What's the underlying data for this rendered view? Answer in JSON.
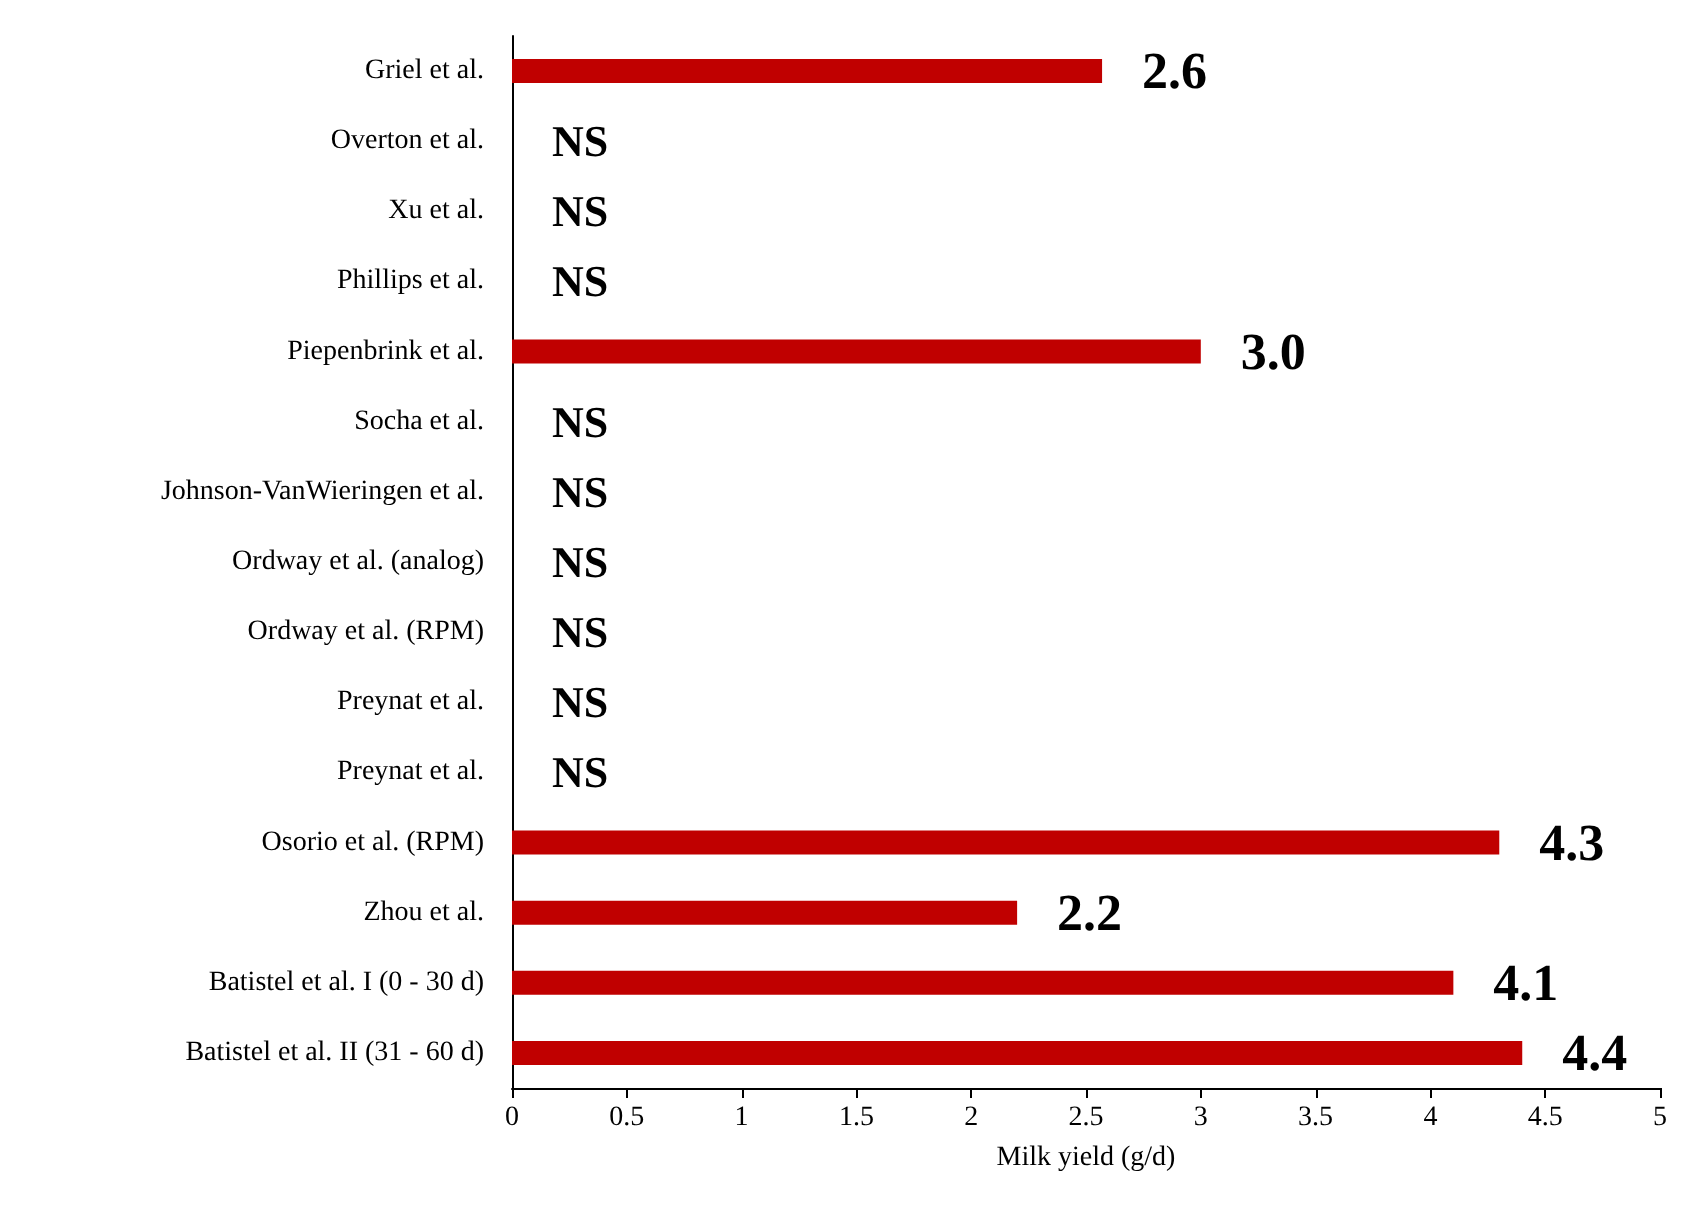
{
  "chart_data": {
    "type": "bar",
    "orientation": "horizontal",
    "xlabel": "Milk yield (g/d)",
    "categories": [
      "Griel et al.",
      "Overton et al.",
      "Xu et al.",
      "Phillips et al.",
      "Piepenbrink et al.",
      "Socha et al.",
      "Johnson-VanWieringen et al.",
      "Ordway et al. (analog)",
      "Ordway et al. (RPM)",
      "Preynat et al.",
      "Preynat et al.",
      "Osorio et al. (RPM)",
      "Zhou et al.",
      "Batistel et al. I (0 - 30 d)",
      "Batistel et al. II (31 - 60 d)"
    ],
    "values": [
      2.57,
      null,
      null,
      null,
      3.0,
      null,
      null,
      null,
      null,
      null,
      null,
      4.3,
      2.2,
      4.1,
      4.4
    ],
    "value_labels": [
      "2.6",
      "NS",
      "NS",
      "NS",
      "3.0",
      "NS",
      "NS",
      "NS",
      "NS",
      "NS",
      "NS",
      "4.3",
      "2.2",
      "4.1",
      "4.4"
    ],
    "color": "#c00000",
    "xlim": [
      0,
      5
    ],
    "xticks": [
      0,
      0.5,
      1,
      1.5,
      2,
      2.5,
      3,
      3.5,
      4,
      4.5,
      5
    ],
    "grid": false
  }
}
